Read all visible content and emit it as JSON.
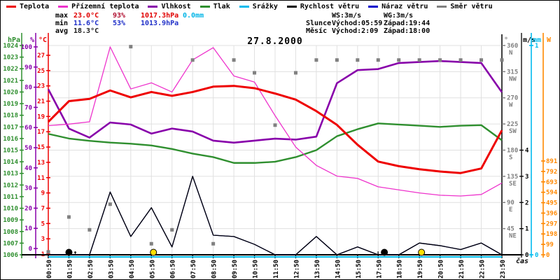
{
  "legend": {
    "items": [
      {
        "label": "Teplota",
        "color": "#ee0000"
      },
      {
        "label": "Přízemní teplota",
        "color": "#ee33cc"
      },
      {
        "label": "Vlhkost",
        "color": "#8800aa"
      },
      {
        "label": "Tlak",
        "color": "#2f8f2f"
      },
      {
        "label": "Srážky",
        "color": "#00bbee"
      },
      {
        "label": "Rychlost větru",
        "color": "#000000"
      },
      {
        "label": "Náraz větru",
        "color": "#0000cc"
      },
      {
        "label": "Směr větru",
        "color": "#808080"
      }
    ]
  },
  "stats": {
    "rows": [
      {
        "label": "max",
        "values": [
          {
            "text": "23.0°C",
            "color": "#e00000"
          },
          {
            "text": "93%",
            "color": "#b01030"
          },
          {
            "text": "1017.3hPa",
            "color": "#e00000"
          },
          {
            "text": "0.0mm",
            "color": "#00b4e6"
          }
        ]
      },
      {
        "label": "min",
        "values": [
          {
            "text": "11.6°C",
            "color": "#2030c8"
          },
          {
            "text": "53%",
            "color": "#2030c8"
          },
          {
            "text": "1013.9hPa",
            "color": "#2030c8"
          }
        ]
      },
      {
        "label": "avg",
        "values": [
          {
            "text": "18.3°C",
            "color": "#202020"
          }
        ]
      }
    ],
    "right_rows": [
      {
        "label": "",
        "col1": "WS:3m/s",
        "col2": "WG:3m/s"
      },
      {
        "label": "Slunce",
        "col1": "Východ:05:59",
        "col2": "Západ:19:44"
      },
      {
        "label": "Měsíc",
        "col1": "Východ:2:09",
        "col2": "Západ:18:00"
      }
    ]
  },
  "chart_data": {
    "type": "line",
    "title": "27.8.2000",
    "xlabel": "čas",
    "x": [
      "00:50",
      "01:50",
      "02:50",
      "03:50",
      "04:50",
      "05:50",
      "06:50",
      "07:50",
      "08:50",
      "09:50",
      "10:50",
      "11:50",
      "12:50",
      "13:50",
      "14:50",
      "15:50",
      "17:50",
      "18:50",
      "19:50",
      "20:50",
      "21:50",
      "22:50",
      "23:50"
    ],
    "series": [
      {
        "name": "Srážky",
        "unit": "mm",
        "color": "#00bbee",
        "width": 2,
        "style": "line",
        "values": [
          0,
          0,
          0,
          0,
          0,
          0,
          0,
          0,
          0,
          0,
          0,
          0,
          0,
          0,
          0,
          0,
          0,
          0,
          0,
          0,
          0,
          0,
          0
        ]
      },
      {
        "name": "Náraz větru",
        "unit": "m/s",
        "color": "#0000cc",
        "width": 1.3,
        "style": "line",
        "values": [
          0,
          0,
          0,
          2.4,
          0.7,
          1.8,
          0.3,
          3.0,
          0.75,
          0.7,
          0.4,
          0,
          0,
          0.7,
          0,
          0.3,
          0,
          0,
          0.45,
          0.35,
          0.2,
          0.45,
          0
        ]
      },
      {
        "name": "Rychlost větru",
        "unit": "m/s",
        "color": "#000000",
        "width": 1.3,
        "style": "line",
        "values": [
          0,
          0,
          0,
          2.4,
          0.7,
          1.8,
          0.3,
          3.0,
          0.75,
          0.7,
          0.4,
          0,
          0,
          0.7,
          0,
          0.3,
          0,
          0,
          0.45,
          0.35,
          0.2,
          0.45,
          0
        ]
      },
      {
        "name": "Tlak",
        "unit": "hPa",
        "color": "#2f8f2f",
        "width": 2.4,
        "style": "line",
        "values": [
          1016.4,
          1016.0,
          1015.8,
          1015.65,
          1015.55,
          1015.4,
          1015.1,
          1014.7,
          1014.4,
          1013.9,
          1013.9,
          1014.0,
          1014.4,
          1015.0,
          1016.2,
          1016.8,
          1017.3,
          1017.2,
          1017.1,
          1017.0,
          1017.1,
          1017.15,
          1015.85
        ]
      },
      {
        "name": "Vlhkost",
        "unit": "%",
        "color": "#8800aa",
        "width": 2.6,
        "style": "line",
        "values": [
          79,
          59.5,
          55,
          62.5,
          61.5,
          57,
          59.5,
          58,
          53.5,
          52.5,
          53.5,
          54.5,
          54,
          55.5,
          82,
          88.5,
          89,
          92,
          92.5,
          93,
          92.5,
          92,
          77.5
        ]
      },
      {
        "name": "Přízemní teplota",
        "unit": "°C",
        "color": "#ee33cc",
        "width": 1.3,
        "style": "line",
        "values": [
          17.8,
          18.0,
          18.3,
          28.1,
          22.6,
          23.4,
          22.2,
          26.4,
          28.0,
          24.3,
          23.5,
          19.1,
          15.0,
          12.6,
          11.2,
          10.9,
          9.8,
          9.4,
          9.0,
          8.7,
          8.6,
          8.8,
          10.3
        ]
      },
      {
        "name": "Teplota",
        "unit": "°C",
        "color": "#ee0000",
        "width": 3,
        "style": "line",
        "values": [
          18.3,
          21.0,
          21.3,
          22.4,
          21.5,
          22.2,
          21.7,
          22.2,
          22.9,
          23.0,
          22.7,
          22.0,
          21.2,
          19.7,
          17.9,
          15.3,
          13.1,
          12.5,
          12.1,
          11.8,
          11.6,
          12.2,
          17.2
        ]
      },
      {
        "name": "Směr větru",
        "unit": "°",
        "color": "#808080",
        "width": 5,
        "style": "scatter",
        "values": [
          5,
          65,
          43,
          87,
          358,
          19,
          43,
          335,
          19,
          335,
          313,
          223,
          313,
          335,
          335,
          335,
          335,
          335,
          335,
          335,
          335,
          335,
          335
        ]
      }
    ],
    "markers": [
      {
        "name": "moon-rise-marker",
        "symbol": "moon",
        "arrow": "up",
        "x_index": 1.0,
        "color": "#000000"
      },
      {
        "name": "sun-rise-marker",
        "symbol": "sun",
        "x_index": 5.1,
        "color": "#ffe000"
      },
      {
        "name": "moon-set-marker",
        "symbol": "moon",
        "arrow": "down",
        "x_index": 16.3,
        "color": "#000000"
      },
      {
        "name": "sun-set-marker",
        "symbol": "sun",
        "x_index": 18.1,
        "color": "#ffe000"
      }
    ],
    "axes_left": [
      {
        "name": "hPa",
        "color": "#2f8f2f",
        "min": 1006,
        "max": 1024,
        "step": 1
      },
      {
        "name": "%",
        "color": "#8800aa",
        "min": 0,
        "max": 100,
        "step": 10
      },
      {
        "name": "°C",
        "color": "#ee0000",
        "min": 1,
        "max": 27,
        "step": 2
      }
    ],
    "axes_right": [
      {
        "name": "°",
        "color": "#808080",
        "ticks": [
          360,
          315,
          270,
          225,
          180,
          135,
          90,
          45
        ],
        "compass": [
          "N",
          "NW",
          "W",
          "SW",
          "S",
          "SE",
          "E",
          "NE"
        ]
      },
      {
        "name": "m/s",
        "color": "#000000",
        "ticks": [
          4,
          3,
          2,
          1,
          0
        ]
      },
      {
        "name": "mm",
        "color": "#00bbee",
        "ticks": [
          1,
          0
        ]
      },
      {
        "name": "W",
        "color": "#ff8800",
        "ticks": [
          891,
          792,
          693,
          594,
          495,
          396,
          297,
          198,
          99,
          0
        ]
      }
    ]
  }
}
